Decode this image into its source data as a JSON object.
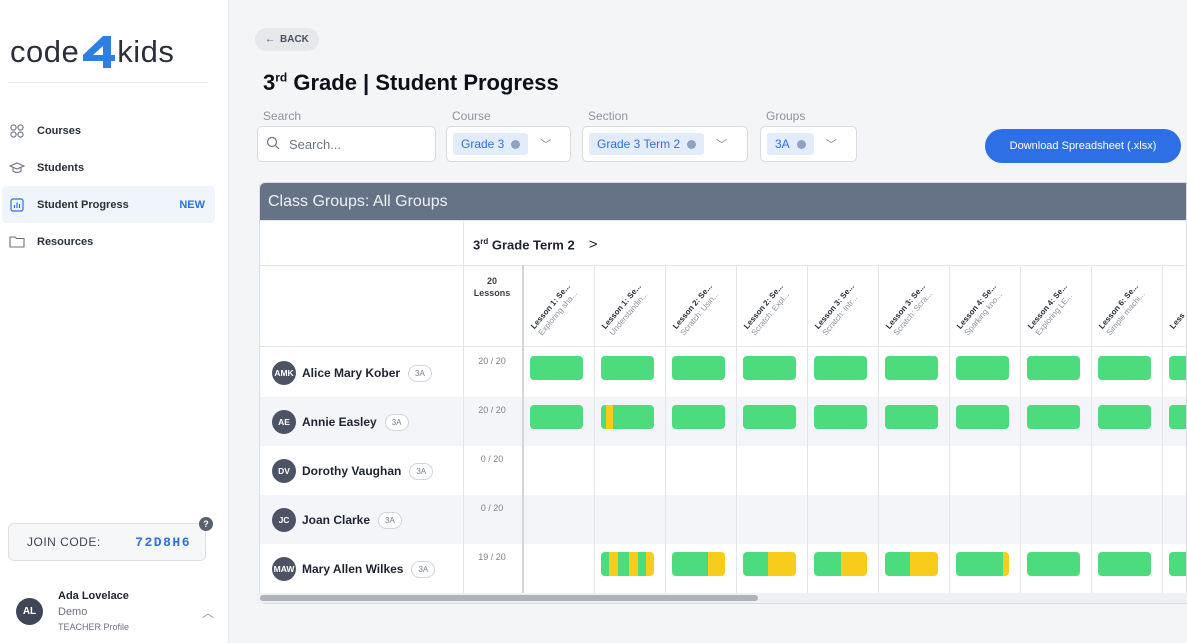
{
  "sidebar": {
    "logo": {
      "left": "code",
      "right": "kids"
    },
    "nav": [
      {
        "label": "Courses",
        "icon": "grid-icon"
      },
      {
        "label": "Students",
        "icon": "graduation-cap-icon"
      },
      {
        "label": "Student Progress",
        "icon": "bar-chart-icon",
        "badge": "NEW"
      },
      {
        "label": "Resources",
        "icon": "folder-icon"
      }
    ],
    "join": {
      "label": "JOIN CODE:",
      "code": "72D8H6"
    },
    "profile": {
      "initials": "AL",
      "name": "Ada Lovelace",
      "sub": "Demo",
      "role": "TEACHER Profile"
    }
  },
  "header": {
    "back": "BACK",
    "title_prefix": "3",
    "title_sup": "rd",
    "title_rest": " Grade | Student Progress"
  },
  "filters": {
    "search_label": "Search",
    "search_placeholder": "Search...",
    "course_label": "Course",
    "course_value": "Grade 3",
    "section_label": "Section",
    "section_value": "Grade 3 Term 2",
    "groups_label": "Groups",
    "groups_value": "3A",
    "download": "Download Spreadsheet (.xlsx)"
  },
  "table": {
    "heading": "Class Groups: All Groups",
    "term_prefix": "3",
    "term_sup": "rd",
    "term_rest": " Grade  Term 2",
    "lessons_count": "20",
    "lessons_word": "Lessons",
    "lessons": [
      {
        "title": "Lesson 1: Se...",
        "sub": "Exploring sha..."
      },
      {
        "title": "Lesson 1: Se...",
        "sub": "Understandin..."
      },
      {
        "title": "Lesson 2: Se...",
        "sub": "Scratch: Usin..."
      },
      {
        "title": "Lesson 2: Se...",
        "sub": "Scratch: Expl..."
      },
      {
        "title": "Lesson 3: Se...",
        "sub": "Scratch: Intr..."
      },
      {
        "title": "Lesson 3: Se...",
        "sub": "Scratch: Scra..."
      },
      {
        "title": "Lesson 4: Se...",
        "sub": "Sparking kno..."
      },
      {
        "title": "Lesson 4: Se...",
        "sub": "Exploring LE..."
      },
      {
        "title": "Lesson 6: Se...",
        "sub": "Simple machi..."
      },
      {
        "title": "Less",
        "sub": ""
      }
    ],
    "students": [
      {
        "initials": "AMK",
        "name": "Alice Mary Kober",
        "group": "3A",
        "score": "20 / 20",
        "progress": [
          [
            [
              "g",
              1
            ]
          ],
          [
            [
              "g",
              1
            ]
          ],
          [
            [
              "g",
              1
            ]
          ],
          [
            [
              "g",
              1
            ]
          ],
          [
            [
              "g",
              1
            ]
          ],
          [
            [
              "g",
              1
            ]
          ],
          [
            [
              "g",
              1
            ]
          ],
          [
            [
              "g",
              1
            ]
          ],
          [
            [
              "g",
              1
            ]
          ],
          [
            [
              "g",
              1
            ]
          ]
        ]
      },
      {
        "initials": "AE",
        "name": "Annie Easley",
        "group": "3A",
        "score": "20 / 20",
        "progress": [
          [
            [
              "g",
              1
            ]
          ],
          [
            [
              "g",
              0.1
            ],
            [
              "y",
              0.13
            ],
            [
              "g",
              0.77
            ]
          ],
          [
            [
              "g",
              1
            ]
          ],
          [
            [
              "g",
              1
            ]
          ],
          [
            [
              "g",
              1
            ]
          ],
          [
            [
              "g",
              1
            ]
          ],
          [
            [
              "g",
              1
            ]
          ],
          [
            [
              "g",
              1
            ]
          ],
          [
            [
              "g",
              1
            ]
          ],
          [
            [
              "g",
              1
            ]
          ]
        ]
      },
      {
        "initials": "DV",
        "name": "Dorothy Vaughan",
        "group": "3A",
        "score": "0 / 20",
        "progress": []
      },
      {
        "initials": "JC",
        "name": "Joan Clarke",
        "group": "3A",
        "score": "0 / 20",
        "progress": []
      },
      {
        "initials": "MAW",
        "name": "Mary Allen Wilkes",
        "group": "3A",
        "score": "19 / 20",
        "progress": [
          null,
          [
            [
              "g",
              0.15
            ],
            [
              "y",
              0.17
            ],
            [
              "g",
              0.2
            ],
            [
              "y",
              0.18
            ],
            [
              "g",
              0.15
            ],
            [
              "y",
              0.15
            ]
          ],
          [
            [
              "g",
              0.68
            ],
            [
              "y",
              0.32
            ]
          ],
          [
            [
              "g",
              0.48
            ],
            [
              "y",
              0.52
            ]
          ],
          [
            [
              "g",
              0.5
            ],
            [
              "y",
              0.5
            ]
          ],
          [
            [
              "g",
              0.48
            ],
            [
              "y",
              0.52
            ]
          ],
          [
            [
              "g",
              0.88
            ],
            [
              "y",
              0.12
            ]
          ],
          [
            [
              "g",
              1
            ]
          ],
          [
            [
              "g",
              1
            ]
          ],
          [
            [
              "g",
              1
            ]
          ]
        ]
      }
    ]
  },
  "colors": {
    "green": "#4cdb7d",
    "yellow": "#f7cc1a",
    "accent": "#2e6fe6"
  }
}
